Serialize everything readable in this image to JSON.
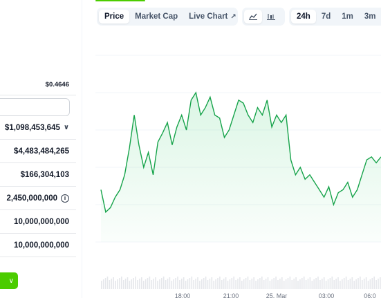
{
  "stats": {
    "price": "$0.4646",
    "rows": [
      {
        "value": "$1,098,453,645",
        "has_chevron": true
      },
      {
        "value": "$4,483,484,265"
      },
      {
        "value": "$166,304,103"
      },
      {
        "value": "2,450,000,000",
        "has_info": true
      },
      {
        "value": "10,000,000,000"
      },
      {
        "value": "10,000,000,000"
      }
    ]
  },
  "toolbar": {
    "tabs": [
      {
        "label": "Price",
        "active": true
      },
      {
        "label": "Market Cap",
        "active": false
      },
      {
        "label": "Live Chart",
        "active": false
      }
    ],
    "chart_type_icons": [
      "line-chart-icon",
      "candlestick-chart-icon"
    ],
    "ranges": [
      {
        "label": "24h",
        "active": true
      },
      {
        "label": "7d",
        "active": false
      },
      {
        "label": "1m",
        "active": false
      },
      {
        "label": "3m",
        "active": false
      }
    ]
  },
  "chart_data": {
    "type": "area",
    "x_labels": [
      "18:00",
      "21:00",
      "25. Mar",
      "03:00",
      "06:0"
    ],
    "values": [
      0.459,
      0.4575,
      0.4578,
      0.4585,
      0.459,
      0.46,
      0.4618,
      0.464,
      0.462,
      0.4605,
      0.4615,
      0.46,
      0.4622,
      0.4628,
      0.4635,
      0.462,
      0.4632,
      0.464,
      0.463,
      0.465,
      0.4655,
      0.464,
      0.4645,
      0.4652,
      0.464,
      0.4638,
      0.4625,
      0.463,
      0.464,
      0.465,
      0.4648,
      0.464,
      0.4635,
      0.4645,
      0.464,
      0.465,
      0.4632,
      0.464,
      0.4635,
      0.464,
      0.461,
      0.46,
      0.4605,
      0.4597,
      0.46,
      0.4595,
      0.459,
      0.4585,
      0.4592,
      0.458,
      0.4588,
      0.459,
      0.4595,
      0.4585,
      0.459,
      0.46,
      0.461,
      0.4612,
      0.4608,
      0.4612
    ],
    "series_color": "#16a34a"
  }
}
